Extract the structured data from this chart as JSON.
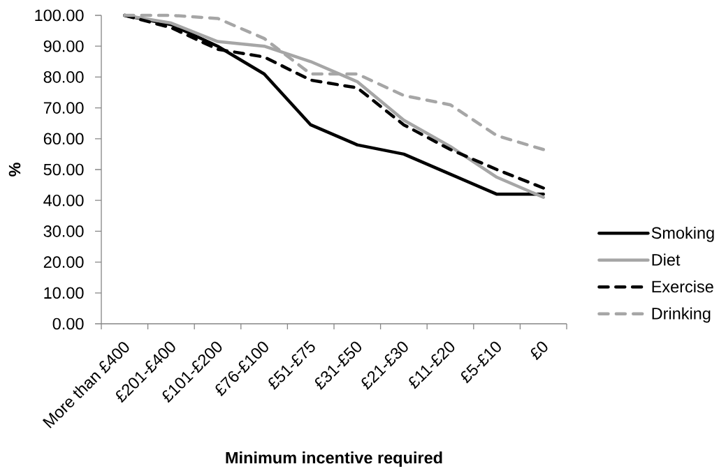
{
  "chart_data": {
    "type": "line",
    "xlabel": "Minimum incentive required",
    "ylabel": "%",
    "categories": [
      "More than £400",
      "£201-£400",
      "£101-£200",
      "£76-£100",
      "£51-£75",
      "£31-£50",
      "£21-£30",
      "£11-£20",
      "£5-£10",
      "£0"
    ],
    "series": [
      {
        "name": "Smoking",
        "color": "#000000",
        "line_style": "solid",
        "values": [
          100,
          97,
          90,
          81,
          64.5,
          58,
          55,
          48.5,
          42,
          42
        ]
      },
      {
        "name": "Diet",
        "color": "#a6a6a6",
        "line_style": "solid",
        "values": [
          100,
          97.5,
          91.5,
          90,
          85,
          78.5,
          66,
          57.5,
          47.5,
          41
        ]
      },
      {
        "name": "Exercise",
        "color": "#000000",
        "line_style": "dashed",
        "values": [
          100,
          96,
          89,
          86.5,
          79,
          76.5,
          64.5,
          56.5,
          50,
          44
        ]
      },
      {
        "name": "Drinking",
        "color": "#a6a6a6",
        "line_style": "dashed",
        "values": [
          100,
          100,
          99,
          92.5,
          81,
          81,
          74,
          71,
          61,
          56.5
        ]
      }
    ],
    "ylim": [
      0,
      100
    ],
    "yticks": [
      {
        "value": 0,
        "label": "0.00"
      },
      {
        "value": 10,
        "label": "10.00"
      },
      {
        "value": 20,
        "label": "20.00"
      },
      {
        "value": 30,
        "label": "30.00"
      },
      {
        "value": 40,
        "label": "40.00"
      },
      {
        "value": 50,
        "label": "50.00"
      },
      {
        "value": 60,
        "label": "60.00"
      },
      {
        "value": 70,
        "label": "70.00"
      },
      {
        "value": 80,
        "label": "80.00"
      },
      {
        "value": 90,
        "label": "90.00"
      },
      {
        "value": 100,
        "label": "100.00"
      }
    ],
    "legend": "right"
  }
}
